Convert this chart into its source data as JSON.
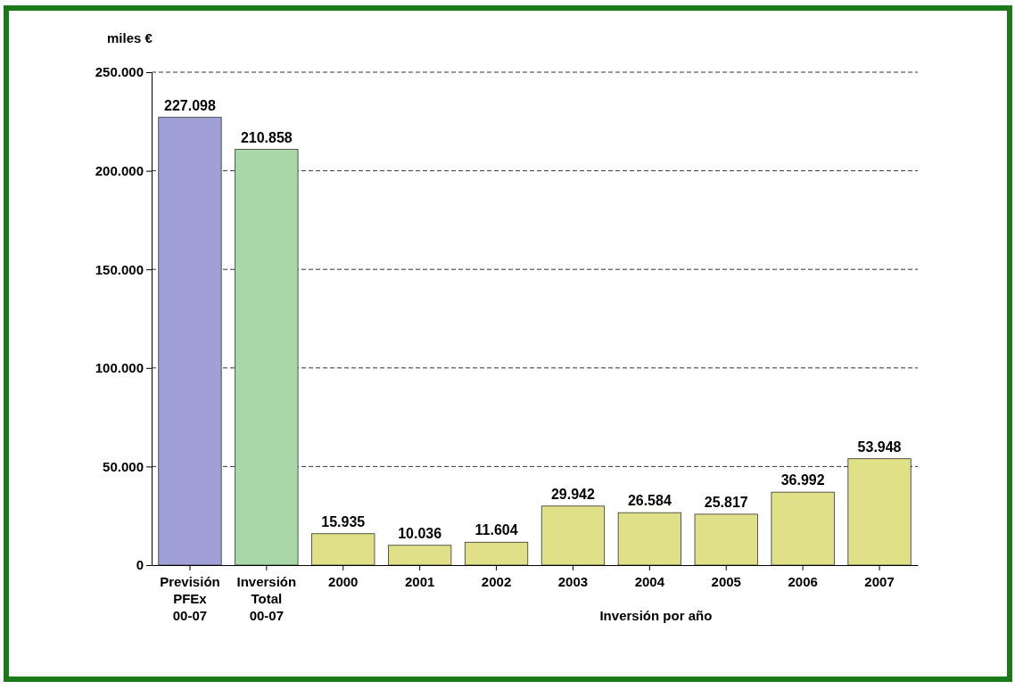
{
  "chart_data": {
    "type": "bar",
    "ylabel": "miles €",
    "xlabel": "Inversión por año",
    "categories": [
      "Previsión PFEx 00-07",
      "Inversión Total 00-07",
      "2000",
      "2001",
      "2002",
      "2003",
      "2004",
      "2005",
      "2006",
      "2007"
    ],
    "values": [
      227098,
      210858,
      15935,
      10036,
      11604,
      29942,
      26584,
      25817,
      36992,
      53948
    ],
    "colors": [
      "#a0a0d8",
      "#a8d8a8",
      "#e0e088",
      "#e0e088",
      "#e0e088",
      "#e0e088",
      "#e0e088",
      "#e0e088",
      "#e0e088",
      "#e0e088"
    ],
    "value_labels": [
      "227.098",
      "210.858",
      "15.935",
      "10.036",
      "11.604",
      "29.942",
      "26.584",
      "25.817",
      "36.992",
      "53.948"
    ],
    "ylim": [
      0,
      250000
    ],
    "yticks": [
      0,
      {
        "value": 50000,
        "label": "50.000"
      },
      {
        "value": 100000,
        "label": "100.000"
      },
      {
        "value": 150000,
        "label": "150.000"
      },
      {
        "value": 200000,
        "label": "200.000"
      },
      {
        "value": 250000,
        "label": "250.000"
      }
    ],
    "grid": "y"
  }
}
